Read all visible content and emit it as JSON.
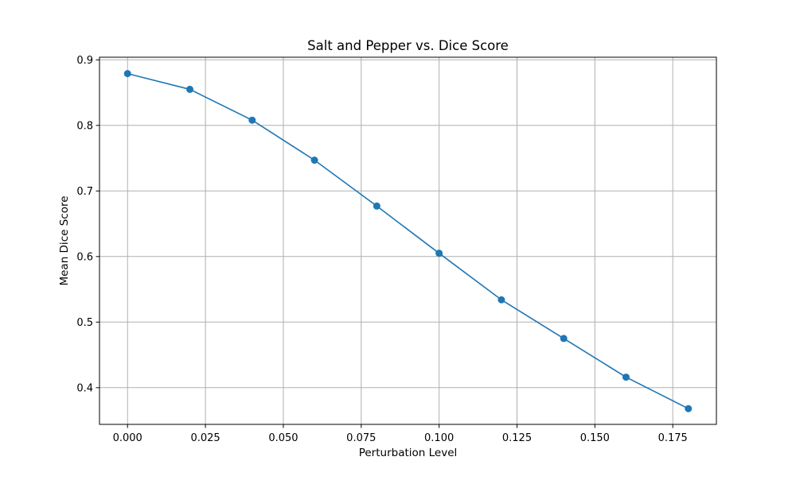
{
  "chart_data": {
    "type": "line",
    "title": "Salt and Pepper vs. Dice Score",
    "xlabel": "Perturbation Level",
    "ylabel": "Mean Dice Score",
    "x": [
      0.0,
      0.02,
      0.04,
      0.06,
      0.08,
      0.1,
      0.12,
      0.14,
      0.16,
      0.18
    ],
    "series": [
      {
        "values": [
          0.879,
          0.855,
          0.808,
          0.747,
          0.677,
          0.605,
          0.534,
          0.475,
          0.416,
          0.368
        ],
        "color": "#1f77b4",
        "marker": "circle"
      }
    ],
    "xlim": [
      -0.009,
      0.189
    ],
    "ylim": [
      0.344,
      0.904
    ],
    "xticks": [
      0.0,
      0.025,
      0.05,
      0.075,
      0.1,
      0.125,
      0.15,
      0.175
    ],
    "xtick_labels": [
      "0.000",
      "0.025",
      "0.050",
      "0.075",
      "0.100",
      "0.125",
      "0.150",
      "0.175"
    ],
    "yticks": [
      0.4,
      0.5,
      0.6,
      0.7,
      0.8,
      0.9
    ],
    "ytick_labels": [
      "0.4",
      "0.5",
      "0.6",
      "0.7",
      "0.8",
      "0.9"
    ],
    "grid": true,
    "legend": "none"
  }
}
